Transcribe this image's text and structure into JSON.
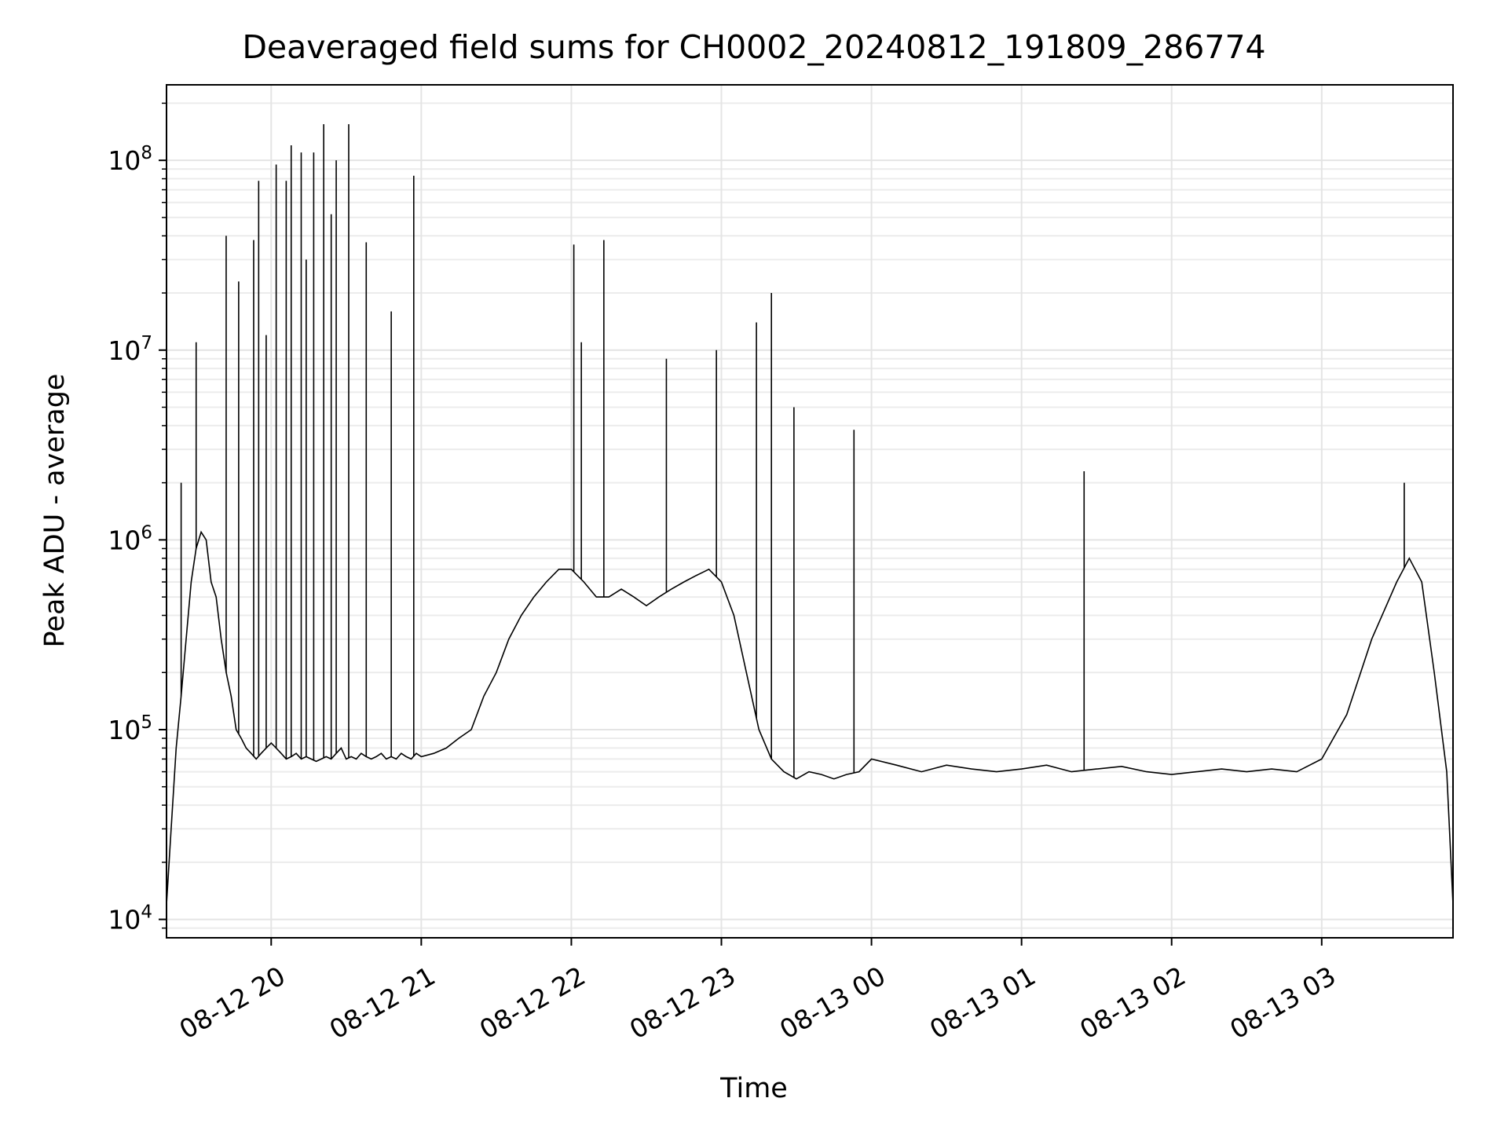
{
  "chart_data": {
    "type": "line",
    "title": "Deaveraged field sums for CH0002_20240812_191809_286774",
    "xlabel": "Time",
    "ylabel": "Peak ADU - average",
    "y_scale": "log",
    "grid": true,
    "grid_minor": true,
    "line_color": "#000000",
    "xlim": [
      "2024-08-12 19:18:09",
      "2024-08-13 03:52:30"
    ],
    "ylim": [
      8000,
      250000000
    ],
    "x_ticks": [
      {
        "value": "2024-08-12 20:00",
        "label": "08-12 20"
      },
      {
        "value": "2024-08-12 21:00",
        "label": "08-12 21"
      },
      {
        "value": "2024-08-12 22:00",
        "label": "08-12 22"
      },
      {
        "value": "2024-08-12 23:00",
        "label": "08-12 23"
      },
      {
        "value": "2024-08-13 00:00",
        "label": "08-13 00"
      },
      {
        "value": "2024-08-13 01:00",
        "label": "08-13 01"
      },
      {
        "value": "2024-08-13 02:00",
        "label": "08-13 02"
      },
      {
        "value": "2024-08-13 03:00",
        "label": "08-13 03"
      }
    ],
    "y_ticks": [
      {
        "value": 10000,
        "base": "10",
        "exp": "4"
      },
      {
        "value": 100000,
        "base": "10",
        "exp": "5"
      },
      {
        "value": 1000000,
        "base": "10",
        "exp": "6"
      },
      {
        "value": 10000000,
        "base": "10",
        "exp": "7"
      },
      {
        "value": 100000000,
        "base": "10",
        "exp": "8"
      }
    ],
    "series": [
      {
        "x": [
          "2024-08-12 19:18:09",
          "2024-08-12 19:20:00",
          "2024-08-12 19:22:00",
          "2024-08-12 19:24:00",
          "2024-08-12 19:26:00",
          "2024-08-12 19:28:00",
          "2024-08-12 19:30:00",
          "2024-08-12 19:32:00",
          "2024-08-12 19:34:00",
          "2024-08-12 19:36:00",
          "2024-08-12 19:38:00",
          "2024-08-12 19:40:00",
          "2024-08-12 19:42:00",
          "2024-08-12 19:44:00",
          "2024-08-12 19:46:00",
          "2024-08-12 19:48:00",
          "2024-08-12 19:50:00",
          "2024-08-12 19:52:00",
          "2024-08-12 19:54:00",
          "2024-08-12 19:56:00",
          "2024-08-12 19:58:00",
          "2024-08-12 20:00:00",
          "2024-08-12 20:02:00",
          "2024-08-12 20:04:00",
          "2024-08-12 20:06:00",
          "2024-08-12 20:08:00",
          "2024-08-12 20:10:00",
          "2024-08-12 20:12:00",
          "2024-08-12 20:14:00",
          "2024-08-12 20:16:00",
          "2024-08-12 20:18:00",
          "2024-08-12 20:20:00",
          "2024-08-12 20:22:00",
          "2024-08-12 20:24:00",
          "2024-08-12 20:26:00",
          "2024-08-12 20:28:00",
          "2024-08-12 20:30:00",
          "2024-08-12 20:32:00",
          "2024-08-12 20:34:00",
          "2024-08-12 20:36:00",
          "2024-08-12 20:38:00",
          "2024-08-12 20:40:00",
          "2024-08-12 20:42:00",
          "2024-08-12 20:44:00",
          "2024-08-12 20:46:00",
          "2024-08-12 20:48:00",
          "2024-08-12 20:50:00",
          "2024-08-12 20:52:00",
          "2024-08-12 20:54:00",
          "2024-08-12 20:56:00",
          "2024-08-12 20:58:00",
          "2024-08-12 21:00:00",
          "2024-08-12 21:05:00",
          "2024-08-12 21:10:00",
          "2024-08-12 21:15:00",
          "2024-08-12 21:20:00",
          "2024-08-12 21:25:00",
          "2024-08-12 21:30:00",
          "2024-08-12 21:35:00",
          "2024-08-12 21:40:00",
          "2024-08-12 21:45:00",
          "2024-08-12 21:50:00",
          "2024-08-12 21:55:00",
          "2024-08-12 22:00:00",
          "2024-08-12 22:05:00",
          "2024-08-12 22:10:00",
          "2024-08-12 22:15:00",
          "2024-08-12 22:20:00",
          "2024-08-12 22:25:00",
          "2024-08-12 22:30:00",
          "2024-08-12 22:35:00",
          "2024-08-12 22:40:00",
          "2024-08-12 22:45:00",
          "2024-08-12 22:50:00",
          "2024-08-12 22:55:00",
          "2024-08-12 23:00:00",
          "2024-08-12 23:05:00",
          "2024-08-12 23:10:00",
          "2024-08-12 23:15:00",
          "2024-08-12 23:20:00",
          "2024-08-12 23:25:00",
          "2024-08-12 23:30:00",
          "2024-08-12 23:35:00",
          "2024-08-12 23:40:00",
          "2024-08-12 23:45:00",
          "2024-08-12 23:50:00",
          "2024-08-12 23:55:00",
          "2024-08-13 00:00:00",
          "2024-08-13 00:10:00",
          "2024-08-13 00:20:00",
          "2024-08-13 00:30:00",
          "2024-08-13 00:40:00",
          "2024-08-13 00:50:00",
          "2024-08-13 01:00:00",
          "2024-08-13 01:10:00",
          "2024-08-13 01:20:00",
          "2024-08-13 01:30:00",
          "2024-08-13 01:40:00",
          "2024-08-13 01:50:00",
          "2024-08-13 02:00:00",
          "2024-08-13 02:10:00",
          "2024-08-13 02:20:00",
          "2024-08-13 02:30:00",
          "2024-08-13 02:40:00",
          "2024-08-13 02:50:00",
          "2024-08-13 03:00:00",
          "2024-08-13 03:10:00",
          "2024-08-13 03:20:00",
          "2024-08-13 03:30:00",
          "2024-08-13 03:35:00",
          "2024-08-13 03:40:00",
          "2024-08-13 03:45:00",
          "2024-08-13 03:50:00",
          "2024-08-13 03:52:30"
        ],
        "y": [
          12000,
          30000,
          80000,
          150000,
          300000,
          600000,
          900000,
          1100000,
          1000000,
          600000,
          500000,
          300000,
          200000,
          150000,
          100000,
          90000,
          80000,
          75000,
          70000,
          75000,
          80000,
          85000,
          80000,
          75000,
          70000,
          72000,
          75000,
          70000,
          72000,
          70000,
          68000,
          70000,
          72000,
          70000,
          75000,
          80000,
          70000,
          72000,
          70000,
          75000,
          72000,
          70000,
          72000,
          75000,
          70000,
          72000,
          70000,
          75000,
          72000,
          70000,
          75000,
          72000,
          75000,
          80000,
          90000,
          100000,
          150000,
          200000,
          300000,
          400000,
          500000,
          600000,
          700000,
          700000,
          600000,
          500000,
          500000,
          550000,
          500000,
          450000,
          500000,
          550000,
          600000,
          650000,
          700000,
          600000,
          400000,
          200000,
          100000,
          70000,
          60000,
          55000,
          60000,
          58000,
          55000,
          58000,
          60000,
          70000,
          65000,
          60000,
          65000,
          62000,
          60000,
          62000,
          65000,
          60000,
          62000,
          64000,
          60000,
          58000,
          60000,
          62000,
          60000,
          62000,
          60000,
          70000,
          120000,
          300000,
          600000,
          800000,
          600000,
          200000,
          60000,
          12000
        ]
      }
    ],
    "spikes": [
      {
        "x": "2024-08-12 19:24:00",
        "y": 2000000
      },
      {
        "x": "2024-08-12 19:30:00",
        "y": 11000000
      },
      {
        "x": "2024-08-12 19:42:00",
        "y": 40000000
      },
      {
        "x": "2024-08-12 19:47:00",
        "y": 23000000
      },
      {
        "x": "2024-08-12 19:53:00",
        "y": 38000000
      },
      {
        "x": "2024-08-12 19:55:00",
        "y": 78000000
      },
      {
        "x": "2024-08-12 19:58:00",
        "y": 12000000
      },
      {
        "x": "2024-08-12 20:02:00",
        "y": 95000000
      },
      {
        "x": "2024-08-12 20:06:00",
        "y": 78000000
      },
      {
        "x": "2024-08-12 20:08:00",
        "y": 120000000
      },
      {
        "x": "2024-08-12 20:12:00",
        "y": 110000000
      },
      {
        "x": "2024-08-12 20:14:00",
        "y": 30000000
      },
      {
        "x": "2024-08-12 20:17:00",
        "y": 110000000
      },
      {
        "x": "2024-08-12 20:21:00",
        "y": 155000000
      },
      {
        "x": "2024-08-12 20:24:00",
        "y": 52000000
      },
      {
        "x": "2024-08-12 20:26:00",
        "y": 100000000
      },
      {
        "x": "2024-08-12 20:31:00",
        "y": 155000000
      },
      {
        "x": "2024-08-12 20:38:00",
        "y": 37000000
      },
      {
        "x": "2024-08-12 20:48:00",
        "y": 16000000
      },
      {
        "x": "2024-08-12 20:57:00",
        "y": 83000000
      },
      {
        "x": "2024-08-12 22:01:00",
        "y": 36000000
      },
      {
        "x": "2024-08-12 22:04:00",
        "y": 11000000
      },
      {
        "x": "2024-08-12 22:13:00",
        "y": 38000000
      },
      {
        "x": "2024-08-12 22:38:00",
        "y": 9000000
      },
      {
        "x": "2024-08-12 22:58:00",
        "y": 10000000
      },
      {
        "x": "2024-08-12 23:14:00",
        "y": 14000000
      },
      {
        "x": "2024-08-12 23:20:00",
        "y": 20000000
      },
      {
        "x": "2024-08-12 23:29:00",
        "y": 5000000
      },
      {
        "x": "2024-08-12 23:53:00",
        "y": 3800000
      },
      {
        "x": "2024-08-13 01:25:00",
        "y": 2300000
      },
      {
        "x": "2024-08-13 03:33:00",
        "y": 2000000
      }
    ]
  }
}
